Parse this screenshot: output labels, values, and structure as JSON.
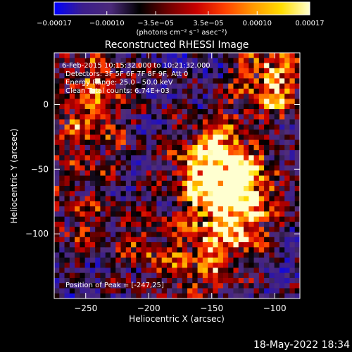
{
  "chart_data": {
    "type": "heatmap",
    "title": "Reconstructed RHESSI Image",
    "xlabel": "Heliocentric X (arcsec)",
    "ylabel": "Heliocentric Y (arcsec)",
    "xlim": [
      -275,
      -80
    ],
    "ylim": [
      -150,
      40
    ],
    "x_ticks": [
      -250,
      -200,
      -150,
      -100
    ],
    "y_ticks": [
      0,
      -50,
      -100
    ],
    "colorbar": {
      "range": [
        -0.00017,
        0.00017
      ],
      "tick_values": [
        -0.00017,
        -0.0001,
        -3.5e-05,
        3.5e-05,
        0.0001,
        0.00017
      ],
      "tick_labels": [
        "-0.00017",
        "-0.00010",
        "-3.5e-05",
        "3.5e-05",
        "0.00010",
        "0.00017"
      ],
      "unit_label": "(photons cm⁻² s⁻¹ asec⁻²)",
      "colormap": [
        "#0000ff",
        "#3c1e8c",
        "#4b2a7a",
        "#000000",
        "#6e0000",
        "#c80000",
        "#ff4000",
        "#ff9900",
        "#ffdd00",
        "#ffffd0"
      ]
    },
    "annotations": [
      "6-Feb-2015 10:15:32.000 to 10:21:32.000",
      "Detectors: 3F 5F 6F 7F 8F 9F, Att 0",
      "Energy Range: 25.0 - 50.0 keV",
      "Clean     Total counts: 6.74E+03"
    ],
    "peak_label": "Position of Peak = [-247,25]",
    "peak": [
      -247,
      25
    ],
    "hotspots": [
      {
        "x": -150,
        "y": -45,
        "intensity": 1.0
      },
      {
        "x": -130,
        "y": -65,
        "intensity": 0.8
      },
      {
        "x": -100,
        "y": 20,
        "intensity": 0.85
      },
      {
        "x": -135,
        "y": -95,
        "intensity": 0.6
      },
      {
        "x": -240,
        "y": 15,
        "intensity": 0.55
      },
      {
        "x": -250,
        "y": -25,
        "intensity": 0.45
      },
      {
        "x": -200,
        "y": -110,
        "intensity": 0.4
      },
      {
        "x": -160,
        "y": -130,
        "intensity": 0.45
      },
      {
        "x": -260,
        "y": -85,
        "intensity": 0.35
      }
    ]
  },
  "timestamp": "18-May-2022 18:34"
}
